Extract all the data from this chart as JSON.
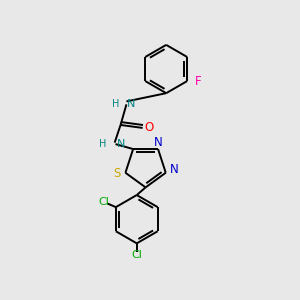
{
  "background_color": "#e8e8e8",
  "bond_color": "#000000",
  "atom_colors": {
    "N": "#008080",
    "N2": "#0000cc",
    "O": "#ff0000",
    "S": "#ccaa00",
    "F": "#ff00aa",
    "Cl": "#00aa00"
  },
  "figsize": [
    3.0,
    3.0
  ],
  "dpi": 100,
  "lw": 1.4
}
